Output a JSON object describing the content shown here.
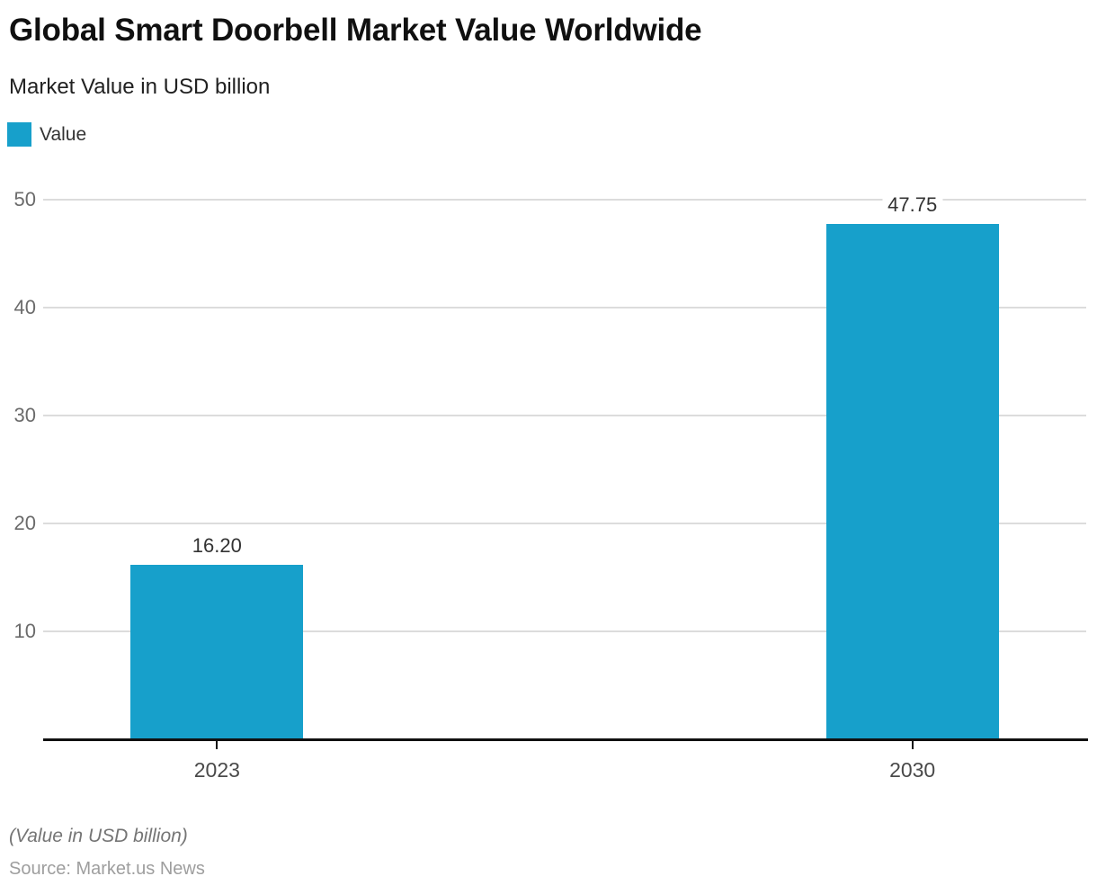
{
  "header": {
    "title": "Global Smart Doorbell Market Value Worldwide",
    "subtitle": "Market Value in USD billion"
  },
  "legend": {
    "label": "Value",
    "color": "#17a0cb"
  },
  "chart_data": {
    "type": "bar",
    "title": "Global Smart Doorbell Market Value Worldwide",
    "subtitle": "Market Value in USD billion",
    "categories": [
      "2023",
      "2030"
    ],
    "series": [
      {
        "name": "Value",
        "values": [
          16.2,
          47.75
        ],
        "color": "#17a0cb"
      }
    ],
    "data_labels": [
      "16.20",
      "47.75"
    ],
    "xlabel": "",
    "ylabel": "Market Value in USD billion",
    "ylim": [
      0,
      50
    ],
    "yticks": [
      10,
      20,
      30,
      40,
      50
    ],
    "grid": true,
    "legend_position": "top-left"
  },
  "footer": {
    "note": "(Value in USD billion)",
    "source": "Source: Market.us News"
  }
}
